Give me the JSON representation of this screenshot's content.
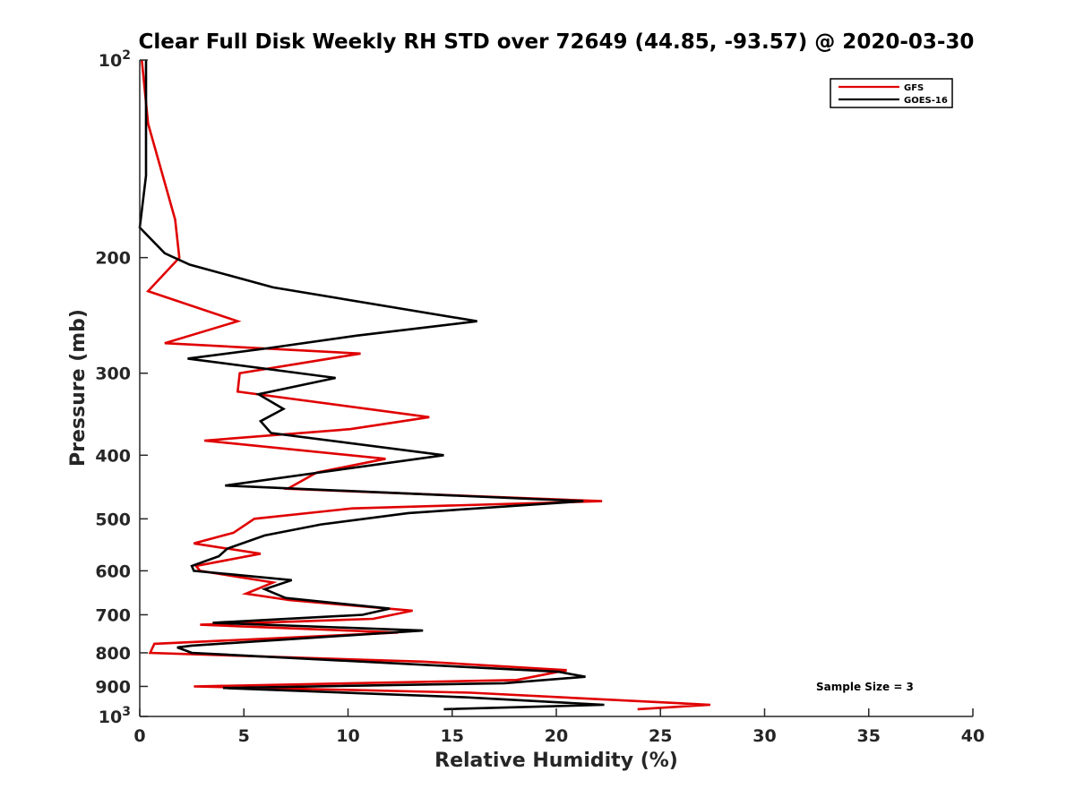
{
  "chart_data": {
    "type": "line",
    "title": "Clear Full Disk Weekly RH STD over 72649 (44.85, -93.57) @ 2020-03-30",
    "xlabel": "Relative Humidity (%)",
    "ylabel": "Pressure (mb)",
    "xlim": [
      0,
      40
    ],
    "ylim": [
      100,
      1000
    ],
    "y_scale": "log",
    "y_reversed": true,
    "x_ticks": [
      "0",
      "5",
      "10",
      "15",
      "20",
      "25",
      "30",
      "35",
      "40"
    ],
    "y_ticks": [
      {
        "value": 100,
        "base": "10",
        "exp": "2"
      },
      {
        "value": 200,
        "label": "200"
      },
      {
        "value": 300,
        "label": "300"
      },
      {
        "value": 400,
        "label": "400"
      },
      {
        "value": 500,
        "label": "500"
      },
      {
        "value": 600,
        "label": "600"
      },
      {
        "value": 700,
        "label": "700"
      },
      {
        "value": 800,
        "label": "800"
      },
      {
        "value": 900,
        "label": "900"
      },
      {
        "value": 1000,
        "base": "10",
        "exp": "3"
      }
    ],
    "legend_position": "top-right",
    "annotation": "Sample Size = 3",
    "series": [
      {
        "name": "GFS",
        "color": "#e00000",
        "points": [
          [
            0.1,
            100
          ],
          [
            0.4,
            125
          ],
          [
            1.7,
            175
          ],
          [
            1.9,
            200
          ],
          [
            0.4,
            225
          ],
          [
            4.7,
            250
          ],
          [
            1.2,
            270
          ],
          [
            10.6,
            280
          ],
          [
            4.8,
            300
          ],
          [
            4.7,
            320
          ],
          [
            13.9,
            350
          ],
          [
            10.1,
            365
          ],
          [
            3.1,
            380
          ],
          [
            11.8,
            405
          ],
          [
            8.5,
            425
          ],
          [
            7.1,
            450
          ],
          [
            22.2,
            470
          ],
          [
            10.2,
            482
          ],
          [
            5.5,
            500
          ],
          [
            4.5,
            525
          ],
          [
            2.6,
            545
          ],
          [
            5.8,
            565
          ],
          [
            2.7,
            590
          ],
          [
            2.9,
            600
          ],
          [
            6.4,
            625
          ],
          [
            5.1,
            650
          ],
          [
            7.2,
            665
          ],
          [
            13.1,
            690
          ],
          [
            11.2,
            710
          ],
          [
            2.9,
            725
          ],
          [
            12.4,
            745
          ],
          [
            0.7,
            775
          ],
          [
            0.5,
            800
          ],
          [
            13.6,
            825
          ],
          [
            20.5,
            850
          ],
          [
            18.1,
            880
          ],
          [
            2.6,
            900
          ],
          [
            15.9,
            920
          ],
          [
            27.4,
            960
          ],
          [
            23.9,
            975
          ]
        ]
      },
      {
        "name": "GOES-16",
        "color": "#000000",
        "points": [
          [
            0.3,
            100
          ],
          [
            0.3,
            150
          ],
          [
            0.0,
            180
          ],
          [
            1.2,
            197
          ],
          [
            2.4,
            205
          ],
          [
            6.4,
            222
          ],
          [
            16.2,
            250
          ],
          [
            10.4,
            263
          ],
          [
            6.1,
            275
          ],
          [
            2.3,
            285
          ],
          [
            9.4,
            305
          ],
          [
            5.7,
            323
          ],
          [
            6.9,
            340
          ],
          [
            5.8,
            355
          ],
          [
            6.3,
            370
          ],
          [
            14.6,
            400
          ],
          [
            4.1,
            445
          ],
          [
            21.3,
            470
          ],
          [
            12.9,
            490
          ],
          [
            8.7,
            510
          ],
          [
            6.0,
            530
          ],
          [
            4.2,
            555
          ],
          [
            3.8,
            570
          ],
          [
            2.5,
            590
          ],
          [
            2.6,
            600
          ],
          [
            7.3,
            620
          ],
          [
            6.0,
            640
          ],
          [
            7.0,
            660
          ],
          [
            12.0,
            685
          ],
          [
            10.7,
            700
          ],
          [
            3.5,
            720
          ],
          [
            13.6,
            740
          ],
          [
            2.5,
            780
          ],
          [
            1.8,
            785
          ],
          [
            2.5,
            800
          ],
          [
            20.1,
            855
          ],
          [
            21.4,
            870
          ],
          [
            17.5,
            890
          ],
          [
            4.0,
            905
          ],
          [
            15.6,
            935
          ],
          [
            22.3,
            960
          ],
          [
            14.6,
            975
          ]
        ]
      }
    ]
  }
}
